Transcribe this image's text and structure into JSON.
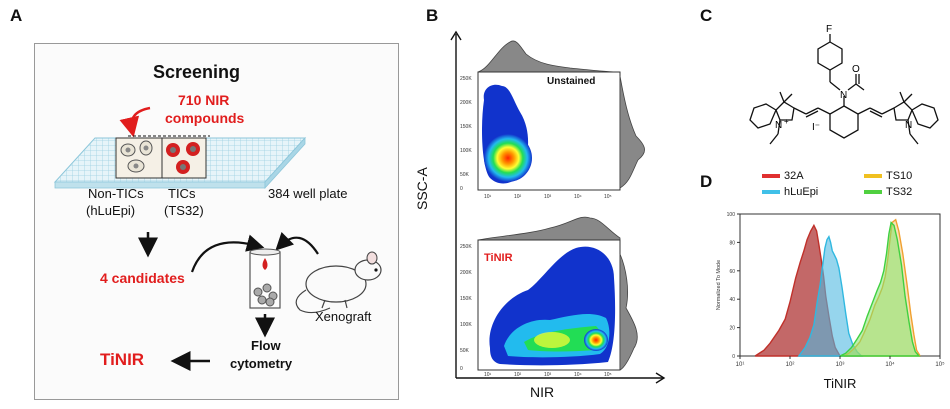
{
  "panels": {
    "a": "A",
    "b": "B",
    "c": "C",
    "d": "D"
  },
  "panel_a": {
    "title": "Screening",
    "compounds_line1": "710 NIR",
    "compounds_line2": "compounds",
    "non_tics": "Non-TICs",
    "non_tics_sub": "(hLuEpi)",
    "tics": "TICs",
    "tics_sub": "(TS32)",
    "plate": "384 well plate",
    "candidates": "4 candidates",
    "flow_line1": "Flow",
    "flow_line2": "cytometry",
    "xenograft": "Xenograft",
    "result": "TiNIR",
    "colors": {
      "accent": "#e11d1d",
      "grid": "#c6e4ee"
    }
  },
  "panel_b": {
    "ylabel": "SSC-A",
    "xlabel": "NIR",
    "top_label": "Unstained",
    "bottom_label": "TiNIR",
    "yticks": [
      "250K",
      "200K",
      "150K",
      "100K",
      "50K",
      "0"
    ],
    "xticks": [
      "10¹",
      "10²",
      "10³",
      "10⁴",
      "10⁵"
    ]
  },
  "panel_c": {
    "atoms": {
      "f": "F",
      "n_left": "N",
      "n_right": "N",
      "n_amide": "N",
      "o": "O",
      "iodide": "I⁻",
      "plus": "+"
    }
  },
  "chart_data": {
    "type": "area",
    "title": "",
    "xlabel": "TiNIR",
    "ylabel": "Normalized To Mode",
    "x_scale": "log",
    "xlim": [
      10,
      100000
    ],
    "ylim": [
      0,
      100
    ],
    "xticks": [
      "10¹",
      "10²",
      "10³",
      "10⁴",
      "10⁵"
    ],
    "yticks": [
      "100",
      "80",
      "60",
      "40",
      "20",
      "0"
    ],
    "legend": [
      {
        "name": "32A",
        "color": "#e03030"
      },
      {
        "name": "TS10",
        "color": "#f0c020"
      },
      {
        "name": "hLuEpi",
        "color": "#40c0e8"
      },
      {
        "name": "TS32",
        "color": "#50d040"
      }
    ],
    "series": [
      {
        "name": "32A",
        "color": "#c0302a",
        "fill": "rgba(170,40,40,0.7)",
        "x": [
          20,
          30,
          40,
          60,
          80,
          100,
          130,
          160,
          190,
          220,
          260,
          300,
          340,
          380,
          420,
          470,
          520,
          600,
          700,
          800,
          1000
        ],
        "y": [
          0,
          4,
          9,
          18,
          26,
          38,
          55,
          66,
          74,
          82,
          88,
          92,
          88,
          78,
          68,
          56,
          42,
          28,
          14,
          6,
          0
        ]
      },
      {
        "name": "hLuEpi",
        "color": "#30b8e0",
        "fill": "rgba(80,185,225,0.6)",
        "x": [
          150,
          200,
          250,
          300,
          350,
          400,
          450,
          500,
          550,
          600,
          650,
          700,
          750,
          850,
          950,
          1100,
          1300,
          1500,
          1800,
          2200,
          2700
        ],
        "y": [
          0,
          6,
          13,
          22,
          38,
          50,
          64,
          76,
          82,
          84,
          80,
          74,
          72,
          68,
          62,
          48,
          30,
          16,
          8,
          3,
          0
        ]
      },
      {
        "name": "TS10",
        "color": "#f0a030",
        "fill": "rgba(240,190,90,0.45)",
        "x": [
          1200,
          1500,
          2000,
          2500,
          3000,
          4000,
          5000,
          6000,
          7000,
          8000,
          9000,
          10000,
          11000,
          13000,
          15000,
          18000,
          22000,
          26000,
          30000,
          34000,
          40000
        ],
        "y": [
          0,
          2,
          6,
          10,
          16,
          26,
          36,
          42,
          48,
          56,
          68,
          82,
          94,
          96,
          88,
          72,
          50,
          30,
          15,
          4,
          0
        ]
      },
      {
        "name": "TS32",
        "color": "#40d040",
        "fill": "rgba(130,230,110,0.55)",
        "x": [
          1000,
          1300,
          1700,
          2200,
          2800,
          3500,
          4500,
          5500,
          6500,
          7500,
          8500,
          9500,
          10500,
          12000,
          14000,
          17000,
          20000,
          24000,
          28000,
          32000,
          38000
        ],
        "y": [
          0,
          2,
          6,
          12,
          18,
          28,
          38,
          46,
          52,
          60,
          72,
          86,
          94,
          92,
          82,
          64,
          42,
          24,
          10,
          3,
          0
        ]
      }
    ]
  }
}
